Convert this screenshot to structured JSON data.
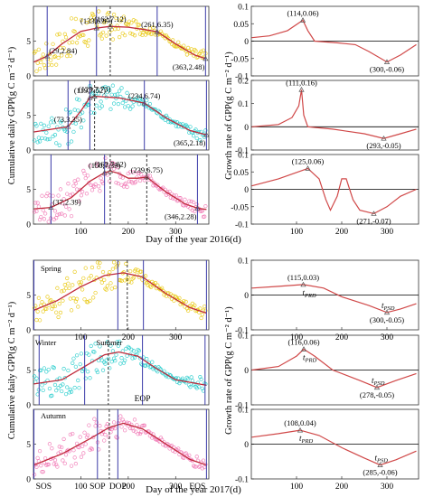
{
  "figure": {
    "xlabel_top": "Day of the year 2016(d)",
    "xlabel_bottom": "Day of the year 2017(d)",
    "ylabel_left": "Cumulative daily GPP(g C m⁻² d⁻¹)",
    "ylabel_right": "Growth rate of GPP(g C m⁻² d⁻¹)"
  },
  "chart_data": [
    {
      "id": "L1",
      "type": "scatter",
      "ylim": [
        0,
        10
      ],
      "yticks": [
        0,
        5
      ],
      "xticks": [],
      "color": "#e8c400",
      "curve": [
        [
          1,
          2.0
        ],
        [
          29,
          2.84
        ],
        [
          60,
          4.6
        ],
        [
          100,
          6.4
        ],
        [
          133,
          6.87
        ],
        [
          162,
          7.12
        ],
        [
          200,
          7.0
        ],
        [
          240,
          6.6
        ],
        [
          261,
          6.35
        ],
        [
          300,
          4.6
        ],
        [
          340,
          3.0
        ],
        [
          363,
          2.48
        ]
      ],
      "vlines_solid": [
        29,
        133,
        261,
        363
      ],
      "vlines_dashed": [
        162
      ],
      "annotations": [
        {
          "label": "(29,2.84)",
          "x": 29,
          "y": 2.84
        },
        {
          "label": "(133,6.87)",
          "x": 133,
          "y": 6.87
        },
        {
          "label": "(162,7.12)",
          "x": 162,
          "y": 7.12
        },
        {
          "label": "(261,6.35)",
          "x": 261,
          "y": 6.35
        },
        {
          "label": "(363,2.48)",
          "x": 363,
          "y": 2.48
        }
      ],
      "scatter_band": [
        3.0,
        2.2
      ]
    },
    {
      "id": "L2",
      "type": "scatter",
      "ylim": [
        0,
        10
      ],
      "yticks": [
        0,
        5
      ],
      "xticks": [],
      "color": "#19c9c9",
      "curve": [
        [
          1,
          2.6
        ],
        [
          40,
          3.0
        ],
        [
          73,
          3.35
        ],
        [
          100,
          5.6
        ],
        [
          119,
          7.52
        ],
        [
          129,
          7.73
        ],
        [
          180,
          7.5
        ],
        [
          234,
          6.74
        ],
        [
          280,
          4.6
        ],
        [
          330,
          2.8
        ],
        [
          365,
          2.18
        ]
      ],
      "vlines_solid": [
        73,
        119,
        234,
        365
      ],
      "vlines_dashed": [
        129
      ],
      "annotations": [
        {
          "label": "(73,3.35)",
          "x": 73,
          "y": 3.35
        },
        {
          "label": "(119,7.52)",
          "x": 119,
          "y": 7.52
        },
        {
          "label": "(129,7.73)",
          "x": 129,
          "y": 7.73
        },
        {
          "label": "(234,6.74)",
          "x": 234,
          "y": 6.74
        },
        {
          "label": "(365,2.18)",
          "x": 365,
          "y": 2.18
        }
      ],
      "scatter_band": [
        3.0,
        2.2
      ]
    },
    {
      "id": "L3",
      "type": "scatter",
      "ylim": [
        0,
        10
      ],
      "yticks": [
        0,
        5
      ],
      "xticks": [
        100,
        200,
        300
      ],
      "color": "#f070b0",
      "curve": [
        [
          1,
          2.2
        ],
        [
          37,
          2.39
        ],
        [
          80,
          3.8
        ],
        [
          120,
          6.2
        ],
        [
          150,
          7.39
        ],
        [
          162,
          7.62
        ],
        [
          180,
          7.3
        ],
        [
          200,
          6.6
        ],
        [
          220,
          6.6
        ],
        [
          239,
          6.75
        ],
        [
          280,
          4.6
        ],
        [
          320,
          2.9
        ],
        [
          346,
          2.28
        ],
        [
          365,
          2.1
        ]
      ],
      "vlines_solid": [
        37,
        150,
        346
      ],
      "vlines_dashed": [
        162,
        239
      ],
      "annotations": [
        {
          "label": "(37,2.39)",
          "x": 37,
          "y": 2.39
        },
        {
          "label": "(150,7.39)",
          "x": 150,
          "y": 7.39
        },
        {
          "label": "(162,7.62)",
          "x": 162,
          "y": 7.62
        },
        {
          "label": "(239,6.75)",
          "x": 239,
          "y": 6.75
        },
        {
          "label": "(346,2.28)",
          "x": 346,
          "y": 2.28
        }
      ],
      "scatter_band": [
        3.0,
        2.2
      ]
    },
    {
      "id": "L4",
      "type": "scatter",
      "ylim": [
        0,
        10
      ],
      "yticks": [
        0,
        5
      ],
      "xticks": [
        100,
        200,
        300
      ],
      "color": "#e8c400",
      "curve": [
        [
          1,
          2.8
        ],
        [
          50,
          4.2
        ],
        [
          100,
          6.2
        ],
        [
          150,
          7.8
        ],
        [
          190,
          8.2
        ],
        [
          230,
          7.6
        ],
        [
          280,
          5.2
        ],
        [
          330,
          3.2
        ],
        [
          365,
          2.4
        ]
      ],
      "vlines_solid": [
        1,
        178,
        232,
        365
      ],
      "vlines_dashed": [
        198
      ],
      "season_label": "Spring",
      "scatter_band": [
        3.2,
        2.2
      ]
    },
    {
      "id": "L5",
      "type": "scatter",
      "ylim": [
        0,
        10
      ],
      "yticks": [
        0,
        5
      ],
      "xticks": [],
      "color": "#19c9c9",
      "curve": [
        [
          1,
          3.0
        ],
        [
          60,
          3.6
        ],
        [
          110,
          5.6
        ],
        [
          150,
          7.2
        ],
        [
          180,
          7.6
        ],
        [
          220,
          7.0
        ],
        [
          260,
          5.2
        ],
        [
          300,
          3.6
        ],
        [
          365,
          2.8
        ]
      ],
      "vlines_solid": [
        12,
        108,
        230,
        362
      ],
      "vlines_dashed": [
        158
      ],
      "season_labels": [
        "Winter",
        "Summer"
      ],
      "marker_label": "EOP",
      "scatter_band": [
        3.0,
        2.2
      ]
    },
    {
      "id": "L6",
      "type": "scatter",
      "ylim": [
        0,
        10
      ],
      "yticks": [
        0,
        5
      ],
      "xticks": [
        100,
        200,
        300
      ],
      "color": "#f070b0",
      "curve": [
        [
          1,
          2.0
        ],
        [
          60,
          3.6
        ],
        [
          120,
          5.8
        ],
        [
          160,
          7.4
        ],
        [
          190,
          8.0
        ],
        [
          230,
          7.2
        ],
        [
          280,
          5.0
        ],
        [
          330,
          2.8
        ],
        [
          365,
          2.0
        ]
      ],
      "vlines_solid": [
        1,
        135,
        178,
        365
      ],
      "vlines_dashed": [
        160
      ],
      "season_label": "Autumn",
      "phase_labels": [
        "SOS",
        "SOP",
        "DOP",
        "EOS"
      ],
      "scatter_band": [
        3.0,
        2.2
      ]
    },
    {
      "id": "R1",
      "type": "line",
      "ylim": [
        -0.1,
        0.1
      ],
      "yticks": [
        -0.1,
        -0.05,
        0,
        0.05,
        0.1
      ],
      "xticks": [],
      "color": "#d04848",
      "curve": [
        [
          1,
          0.01
        ],
        [
          40,
          0.015
        ],
        [
          80,
          0.03
        ],
        [
          114,
          0.06
        ],
        [
          125,
          0.03
        ],
        [
          140,
          0.0
        ],
        [
          190,
          -0.005
        ],
        [
          230,
          -0.01
        ],
        [
          260,
          -0.03
        ],
        [
          300,
          -0.06
        ],
        [
          330,
          -0.04
        ],
        [
          365,
          -0.01
        ]
      ],
      "annotations": [
        {
          "label": "(114,0.06)",
          "x": 114,
          "y": 0.06
        },
        {
          "label": "(300,-0.06)",
          "x": 300,
          "y": -0.06
        }
      ]
    },
    {
      "id": "R2",
      "type": "line",
      "ylim": [
        -0.1,
        0.2
      ],
      "yticks": [
        -0.1,
        0,
        0.1,
        0.2
      ],
      "xticks": [],
      "color": "#d04848",
      "curve": [
        [
          1,
          0.0
        ],
        [
          60,
          0.01
        ],
        [
          90,
          0.04
        ],
        [
          105,
          0.09
        ],
        [
          111,
          0.16
        ],
        [
          116,
          0.05
        ],
        [
          125,
          0.0
        ],
        [
          180,
          -0.01
        ],
        [
          250,
          -0.03
        ],
        [
          293,
          -0.05
        ],
        [
          330,
          -0.03
        ],
        [
          365,
          -0.01
        ]
      ],
      "annotations": [
        {
          "label": "(111,0.16)",
          "x": 111,
          "y": 0.16
        },
        {
          "label": "(293,-0.05)",
          "x": 293,
          "y": -0.05
        }
      ]
    },
    {
      "id": "R3",
      "type": "line",
      "ylim": [
        -0.1,
        0.1
      ],
      "yticks": [
        -0.1,
        -0.05,
        0,
        0.05,
        0.1
      ],
      "xticks": [
        100,
        200,
        300
      ],
      "color": "#d04848",
      "curve": [
        [
          1,
          0.01
        ],
        [
          60,
          0.03
        ],
        [
          125,
          0.06
        ],
        [
          150,
          0.03
        ],
        [
          165,
          -0.03
        ],
        [
          175,
          -0.06
        ],
        [
          190,
          -0.02
        ],
        [
          200,
          0.03
        ],
        [
          210,
          0.03
        ],
        [
          225,
          -0.03
        ],
        [
          240,
          -0.06
        ],
        [
          271,
          -0.07
        ],
        [
          300,
          -0.05
        ],
        [
          330,
          -0.02
        ],
        [
          365,
          0.0
        ]
      ],
      "annotations": [
        {
          "label": "(125,0.06)",
          "x": 125,
          "y": 0.06
        },
        {
          "label": "(271,-0.07)",
          "x": 271,
          "y": -0.07
        }
      ]
    },
    {
      "id": "R4",
      "type": "line",
      "ylim": [
        -0.1,
        0.1
      ],
      "yticks": [
        -0.1,
        0,
        0.1
      ],
      "xticks": [
        100,
        200,
        300
      ],
      "color": "#d04848",
      "curve": [
        [
          1,
          0.02
        ],
        [
          60,
          0.025
        ],
        [
          115,
          0.03
        ],
        [
          160,
          0.02
        ],
        [
          200,
          -0.005
        ],
        [
          260,
          -0.03
        ],
        [
          300,
          -0.05
        ],
        [
          330,
          -0.04
        ],
        [
          365,
          -0.025
        ]
      ],
      "annotations": [
        {
          "label": "(115,0.03)",
          "x": 115,
          "y": 0.03
        },
        {
          "label": "(300,-0.05)",
          "x": 300,
          "y": -0.05
        }
      ],
      "prd_label": "tPRD",
      "psd_label": "tPSD"
    },
    {
      "id": "R5",
      "type": "line",
      "ylim": [
        -0.1,
        0.1
      ],
      "yticks": [
        -0.1,
        0,
        0.1
      ],
      "xticks": [],
      "color": "#d04848",
      "curve": [
        [
          1,
          0.0
        ],
        [
          60,
          0.01
        ],
        [
          100,
          0.04
        ],
        [
          116,
          0.06
        ],
        [
          140,
          0.04
        ],
        [
          180,
          0.0
        ],
        [
          240,
          -0.03
        ],
        [
          278,
          -0.05
        ],
        [
          320,
          -0.03
        ],
        [
          365,
          -0.01
        ]
      ],
      "annotations": [
        {
          "label": "(116,0.06)",
          "x": 116,
          "y": 0.06
        },
        {
          "label": "(278,-0.05)",
          "x": 278,
          "y": -0.05
        }
      ],
      "prd_label": "tPRD",
      "psd_label": "tPSD"
    },
    {
      "id": "R6",
      "type": "line",
      "ylim": [
        -0.1,
        0.1
      ],
      "yticks": [
        -0.1,
        0,
        0.1
      ],
      "xticks": [
        100,
        200,
        300
      ],
      "color": "#d04848",
      "curve": [
        [
          1,
          0.02
        ],
        [
          60,
          0.03
        ],
        [
          108,
          0.04
        ],
        [
          150,
          0.025
        ],
        [
          200,
          -0.01
        ],
        [
          250,
          -0.04
        ],
        [
          285,
          -0.06
        ],
        [
          320,
          -0.045
        ],
        [
          365,
          -0.02
        ]
      ],
      "annotations": [
        {
          "label": "(108,0.04)",
          "x": 108,
          "y": 0.04
        },
        {
          "label": "(285,-0.06)",
          "x": 285,
          "y": -0.06
        }
      ],
      "prd_label": "tPRD",
      "psd_label": "tPSD"
    }
  ]
}
